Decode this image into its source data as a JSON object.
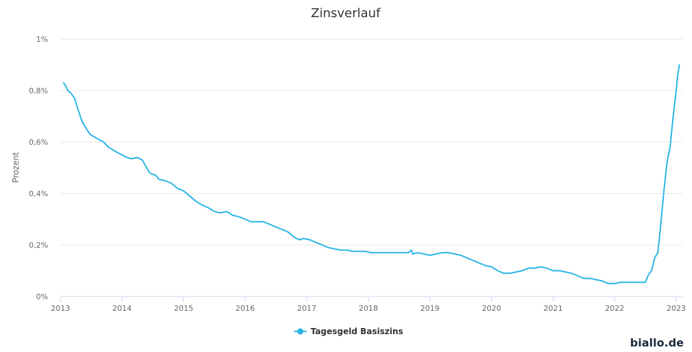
{
  "brand": "biallo.de",
  "colors": {
    "series": "#29b6e6",
    "grid": "#e6e6e6",
    "axis": "#ccd6eb"
  },
  "chart_data": {
    "type": "line",
    "title": "Zinsverlauf",
    "ylabel": "Prozent",
    "xlabel": "",
    "ylim": [
      0,
      1
    ],
    "xlim": [
      2013,
      2023.1
    ],
    "grid": "horizontal",
    "legend_position": "bottom-center",
    "yticks": [
      {
        "value": 0,
        "label": "0%"
      },
      {
        "value": 0.2,
        "label": "0,2%"
      },
      {
        "value": 0.4,
        "label": "0,4%"
      },
      {
        "value": 0.6,
        "label": "0,6%"
      },
      {
        "value": 0.8,
        "label": "0,8%"
      },
      {
        "value": 1,
        "label": "1%"
      }
    ],
    "xticks": [
      {
        "value": 2013,
        "label": "2013"
      },
      {
        "value": 2014,
        "label": "2014"
      },
      {
        "value": 2015,
        "label": "2015"
      },
      {
        "value": 2016,
        "label": "2016"
      },
      {
        "value": 2017,
        "label": "2017"
      },
      {
        "value": 2018,
        "label": "2018"
      },
      {
        "value": 2019,
        "label": "2019"
      },
      {
        "value": 2020,
        "label": "2020"
      },
      {
        "value": 2021,
        "label": "2021"
      },
      {
        "value": 2022,
        "label": "2022"
      },
      {
        "value": 2023,
        "label": "2023"
      }
    ],
    "series": [
      {
        "name": "Tagesgeld Basiszins",
        "color": "#29b6e6",
        "x": [
          2013.05,
          2013.08,
          2013.12,
          2013.17,
          2013.23,
          2013.28,
          2013.35,
          2013.4,
          2013.48,
          2013.55,
          2013.62,
          2013.7,
          2013.78,
          2013.85,
          2013.92,
          2014.0,
          2014.08,
          2014.15,
          2014.25,
          2014.33,
          2014.4,
          2014.45,
          2014.5,
          2014.55,
          2014.6,
          2014.7,
          2014.8,
          2014.9,
          2015.0,
          2015.1,
          2015.2,
          2015.3,
          2015.4,
          2015.5,
          2015.6,
          2015.7,
          2015.8,
          2015.9,
          2016.0,
          2016.1,
          2016.2,
          2016.3,
          2016.4,
          2016.5,
          2016.6,
          2016.7,
          2016.8,
          2016.88,
          2016.95,
          2017.05,
          2017.15,
          2017.25,
          2017.35,
          2017.45,
          2017.55,
          2017.65,
          2017.75,
          2017.85,
          2017.95,
          2018.05,
          2018.15,
          2018.25,
          2018.35,
          2018.45,
          2018.55,
          2018.65,
          2018.7,
          2018.72,
          2018.8,
          2018.9,
          2019.0,
          2019.1,
          2019.2,
          2019.3,
          2019.4,
          2019.5,
          2019.6,
          2019.7,
          2019.8,
          2019.9,
          2020.0,
          2020.1,
          2020.2,
          2020.3,
          2020.4,
          2020.5,
          2020.6,
          2020.7,
          2020.8,
          2020.9,
          2021.0,
          2021.1,
          2021.2,
          2021.3,
          2021.4,
          2021.5,
          2021.6,
          2021.7,
          2021.8,
          2021.9,
          2022.0,
          2022.1,
          2022.2,
          2022.3,
          2022.4,
          2022.5,
          2022.55,
          2022.6,
          2022.65,
          2022.7,
          2022.75,
          2022.8,
          2022.85,
          2022.9,
          2022.95,
          2023.0,
          2023.02,
          2023.05
        ],
        "values": [
          0.83,
          0.82,
          0.8,
          0.79,
          0.77,
          0.73,
          0.68,
          0.66,
          0.63,
          0.62,
          0.61,
          0.6,
          0.58,
          0.57,
          0.56,
          0.55,
          0.54,
          0.535,
          0.54,
          0.53,
          0.5,
          0.48,
          0.475,
          0.47,
          0.455,
          0.45,
          0.44,
          0.42,
          0.41,
          0.39,
          0.37,
          0.355,
          0.345,
          0.33,
          0.325,
          0.33,
          0.315,
          0.31,
          0.3,
          0.29,
          0.29,
          0.29,
          0.28,
          0.27,
          0.26,
          0.25,
          0.23,
          0.22,
          0.225,
          0.22,
          0.21,
          0.2,
          0.19,
          0.185,
          0.18,
          0.18,
          0.175,
          0.175,
          0.175,
          0.17,
          0.17,
          0.17,
          0.17,
          0.17,
          0.17,
          0.17,
          0.18,
          0.165,
          0.17,
          0.165,
          0.16,
          0.165,
          0.17,
          0.17,
          0.165,
          0.16,
          0.15,
          0.14,
          0.13,
          0.12,
          0.115,
          0.1,
          0.09,
          0.09,
          0.095,
          0.1,
          0.11,
          0.11,
          0.115,
          0.11,
          0.1,
          0.1,
          0.095,
          0.09,
          0.08,
          0.07,
          0.07,
          0.065,
          0.06,
          0.05,
          0.05,
          0.055,
          0.055,
          0.055,
          0.055,
          0.055,
          0.085,
          0.1,
          0.15,
          0.17,
          0.28,
          0.41,
          0.52,
          0.58,
          0.7,
          0.8,
          0.85,
          0.9
        ]
      }
    ]
  }
}
